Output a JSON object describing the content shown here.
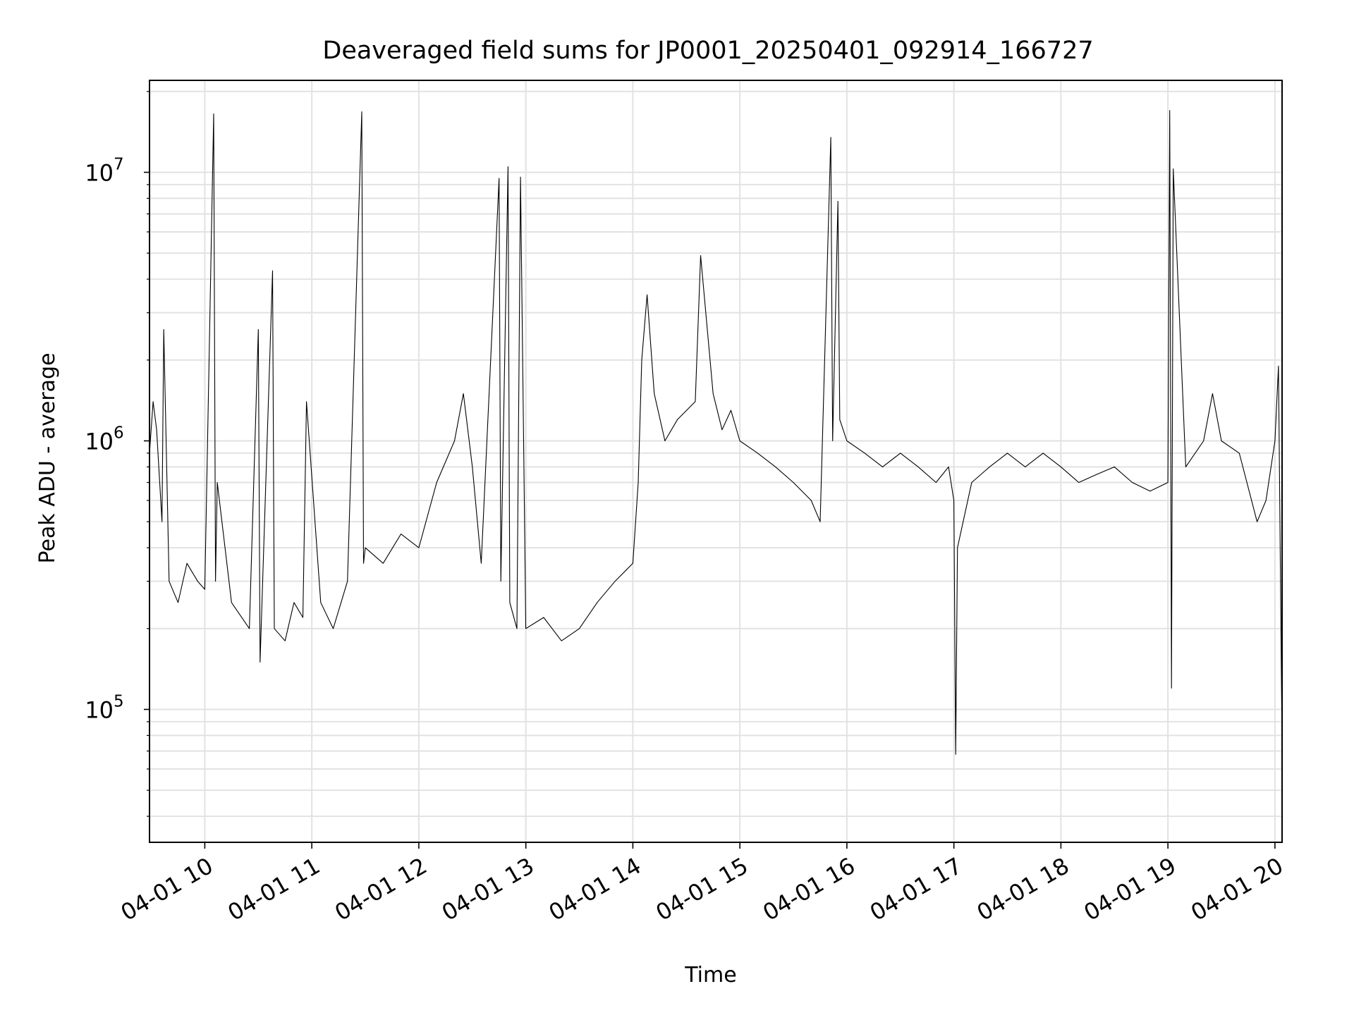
{
  "chart_data": {
    "type": "line",
    "title": "Deaveraged field sums for JP0001_20250401_092914_166727",
    "xlabel": "Time",
    "ylabel": "Peak ADU - average",
    "yscale": "log",
    "grid": true,
    "line_color": "#000000",
    "xlim": [
      "2025-04-01 09:29",
      "2025-04-01 20:04"
    ],
    "ylim": [
      32000,
      22000000
    ],
    "x_ticks": [
      {
        "value": "2025-04-01 10:00",
        "label": "04-01 10"
      },
      {
        "value": "2025-04-01 11:00",
        "label": "04-01 11"
      },
      {
        "value": "2025-04-01 12:00",
        "label": "04-01 12"
      },
      {
        "value": "2025-04-01 13:00",
        "label": "04-01 13"
      },
      {
        "value": "2025-04-01 14:00",
        "label": "04-01 14"
      },
      {
        "value": "2025-04-01 15:00",
        "label": "04-01 15"
      },
      {
        "value": "2025-04-01 16:00",
        "label": "04-01 16"
      },
      {
        "value": "2025-04-01 17:00",
        "label": "04-01 17"
      },
      {
        "value": "2025-04-01 18:00",
        "label": "04-01 18"
      },
      {
        "value": "2025-04-01 19:00",
        "label": "04-01 19"
      },
      {
        "value": "2025-04-01 20:00",
        "label": "04-01 20"
      }
    ],
    "y_ticks": [
      {
        "value": 100000,
        "base": "10",
        "exp": "5"
      },
      {
        "value": 1000000,
        "base": "10",
        "exp": "6"
      },
      {
        "value": 10000000,
        "base": "10",
        "exp": "7"
      }
    ],
    "series": [
      {
        "x": [
          "2025-04-01 09:29",
          "2025-04-01 09:31",
          "2025-04-01 09:33",
          "2025-04-01 09:36",
          "2025-04-01 09:37",
          "2025-04-01 09:40",
          "2025-04-01 09:45",
          "2025-04-01 09:50",
          "2025-04-01 09:56",
          "2025-04-01 10:00",
          "2025-04-01 10:05",
          "2025-04-01 10:06",
          "2025-04-01 10:07",
          "2025-04-01 10:15",
          "2025-04-01 10:25",
          "2025-04-01 10:30",
          "2025-04-01 10:31",
          "2025-04-01 10:38",
          "2025-04-01 10:39",
          "2025-04-01 10:45",
          "2025-04-01 10:50",
          "2025-04-01 10:55",
          "2025-04-01 10:57",
          "2025-04-01 11:05",
          "2025-04-01 11:12",
          "2025-04-01 11:20",
          "2025-04-01 11:28",
          "2025-04-01 11:29",
          "2025-04-01 11:30",
          "2025-04-01 11:40",
          "2025-04-01 11:50",
          "2025-04-01 12:00",
          "2025-04-01 12:10",
          "2025-04-01 12:20",
          "2025-04-01 12:25",
          "2025-04-01 12:30",
          "2025-04-01 12:35",
          "2025-04-01 12:45",
          "2025-04-01 12:46",
          "2025-04-01 12:50",
          "2025-04-01 12:51",
          "2025-04-01 12:55",
          "2025-04-01 12:57",
          "2025-04-01 13:00",
          "2025-04-01 13:10",
          "2025-04-01 13:20",
          "2025-04-01 13:30",
          "2025-04-01 13:40",
          "2025-04-01 13:50",
          "2025-04-01 14:00",
          "2025-04-01 14:03",
          "2025-04-01 14:05",
          "2025-04-01 14:08",
          "2025-04-01 14:12",
          "2025-04-01 14:18",
          "2025-04-01 14:25",
          "2025-04-01 14:35",
          "2025-04-01 14:38",
          "2025-04-01 14:45",
          "2025-04-01 14:50",
          "2025-04-01 14:55",
          "2025-04-01 15:00",
          "2025-04-01 15:10",
          "2025-04-01 15:20",
          "2025-04-01 15:30",
          "2025-04-01 15:40",
          "2025-04-01 15:45",
          "2025-04-01 15:51",
          "2025-04-01 15:52",
          "2025-04-01 15:55",
          "2025-04-01 15:56",
          "2025-04-01 16:00",
          "2025-04-01 16:10",
          "2025-04-01 16:20",
          "2025-04-01 16:30",
          "2025-04-01 16:40",
          "2025-04-01 16:50",
          "2025-04-01 16:57",
          "2025-04-01 17:00",
          "2025-04-01 17:01",
          "2025-04-01 17:02",
          "2025-04-01 17:10",
          "2025-04-01 17:20",
          "2025-04-01 17:30",
          "2025-04-01 17:40",
          "2025-04-01 17:50",
          "2025-04-01 18:00",
          "2025-04-01 18:10",
          "2025-04-01 18:20",
          "2025-04-01 18:30",
          "2025-04-01 18:40",
          "2025-04-01 18:50",
          "2025-04-01 19:00",
          "2025-04-01 19:01",
          "2025-04-01 19:02",
          "2025-04-01 19:03",
          "2025-04-01 19:10",
          "2025-04-01 19:20",
          "2025-04-01 19:25",
          "2025-04-01 19:30",
          "2025-04-01 19:40",
          "2025-04-01 19:50",
          "2025-04-01 19:55",
          "2025-04-01 20:00",
          "2025-04-01 20:02",
          "2025-04-01 20:04"
        ],
        "y": [
          900000,
          1400000,
          1100000,
          500000,
          2600000,
          300000,
          250000,
          350000,
          300000,
          280000,
          16500000,
          300000,
          700000,
          250000,
          200000,
          2600000,
          150000,
          4300000,
          200000,
          180000,
          250000,
          220000,
          1400000,
          250000,
          200000,
          300000,
          16800000,
          350000,
          400000,
          350000,
          450000,
          400000,
          700000,
          1000000,
          1500000,
          800000,
          350000,
          9500000,
          300000,
          10500000,
          250000,
          200000,
          9600000,
          200000,
          220000,
          180000,
          200000,
          250000,
          300000,
          350000,
          700000,
          2000000,
          3500000,
          1500000,
          1000000,
          1200000,
          1400000,
          4900000,
          1500000,
          1100000,
          1300000,
          1000000,
          900000,
          800000,
          700000,
          600000,
          500000,
          13500000,
          1000000,
          7800000,
          1200000,
          1000000,
          900000,
          800000,
          900000,
          800000,
          700000,
          800000,
          600000,
          68000,
          400000,
          700000,
          800000,
          900000,
          800000,
          900000,
          800000,
          700000,
          750000,
          800000,
          700000,
          650000,
          700000,
          17000000,
          120000,
          10300000,
          800000,
          1000000,
          1500000,
          1000000,
          900000,
          500000,
          600000,
          1000000,
          1900000,
          72000
        ]
      }
    ]
  }
}
